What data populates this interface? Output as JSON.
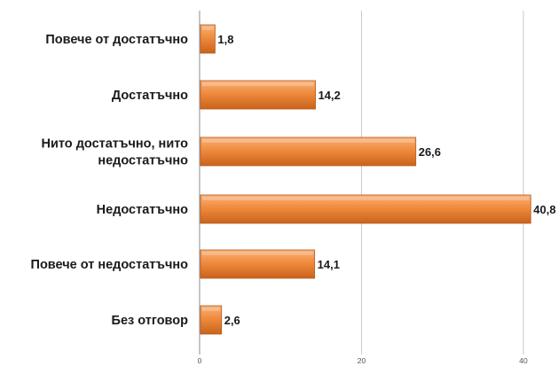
{
  "chart_data": {
    "type": "bar",
    "orientation": "horizontal",
    "categories": [
      [
        "Повече от достатъчно"
      ],
      [
        "Достатъчно"
      ],
      [
        "Нито достатъчно, нито",
        "недостатъчно"
      ],
      [
        "Недостатъчно"
      ],
      [
        "Повече от недостатъчно"
      ],
      [
        "Без отговор"
      ]
    ],
    "values": [
      1.8,
      14.2,
      26.6,
      40.8,
      14.1,
      2.6
    ],
    "value_labels": [
      "1,8",
      "14,2",
      "26,6",
      "40,8",
      "14,1",
      "2,6"
    ],
    "x_ticks": [
      0,
      20,
      40
    ],
    "x_tick_labels": [
      "0",
      "20",
      "40"
    ],
    "xlim": [
      0,
      44
    ],
    "grid": true,
    "legend": "none",
    "colors": {
      "bar": "#f08a3c",
      "bar_light": "#f8b27a",
      "bar_dark": "#c9631c",
      "bar_edge": "#b85a1a"
    }
  }
}
